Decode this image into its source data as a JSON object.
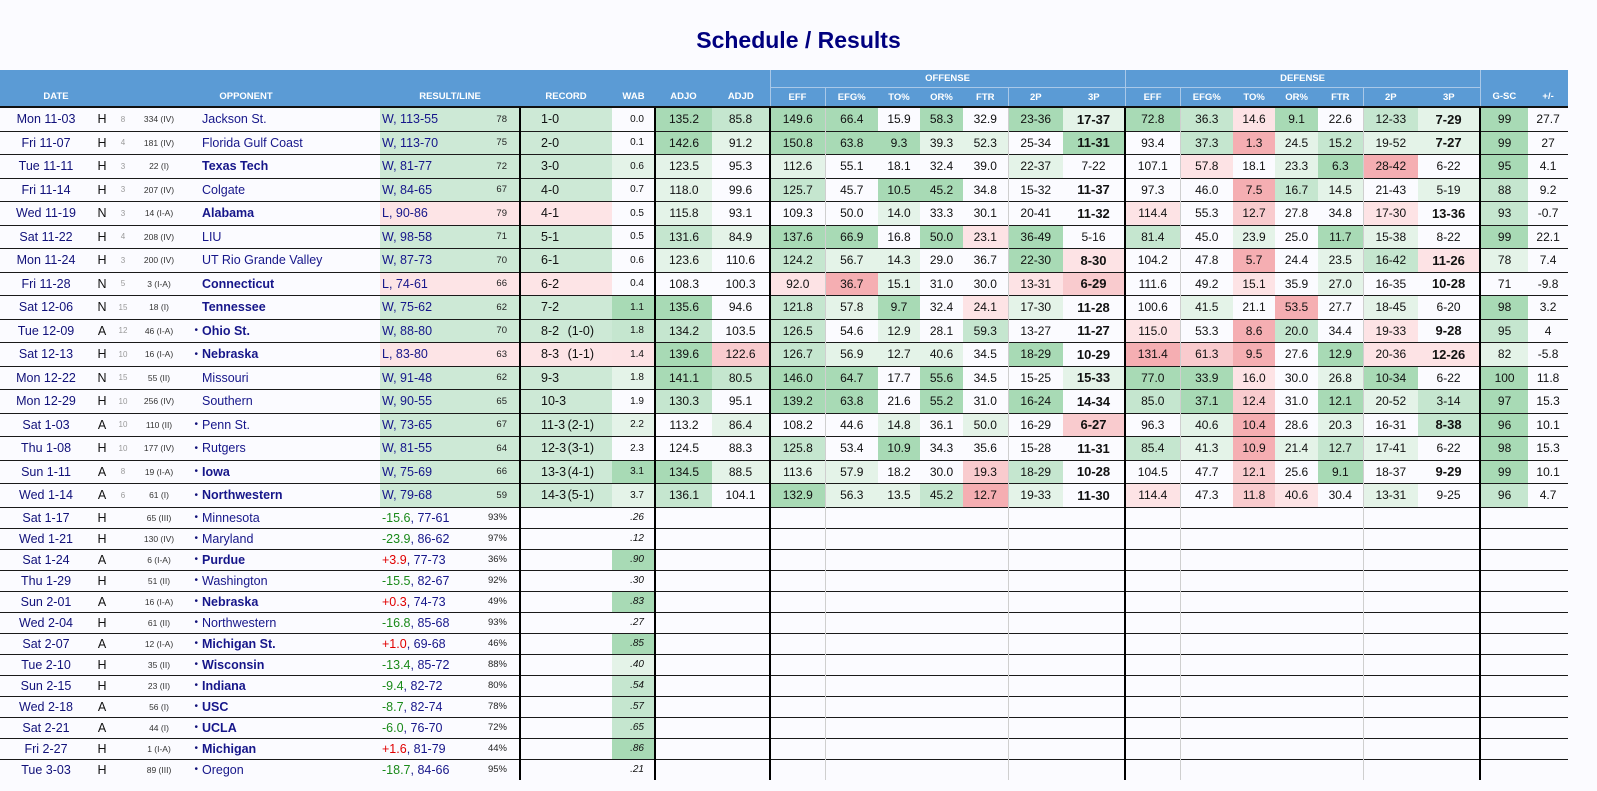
{
  "title": "Schedule / Results",
  "header": {
    "date": "DATE",
    "opponent": "OPPONENT",
    "result": "RESULT/LINE",
    "record": "RECORD",
    "wab": "WAB",
    "adjo": "ADJO",
    "adjd": "ADJD",
    "offense": "OFFENSE",
    "defense": "DEFENSE",
    "stats": [
      "EFF",
      "EFG%",
      "TO%",
      "OR%",
      "FTR",
      "2P",
      "3P"
    ],
    "gsc": "G-SC",
    "pm": "+/-"
  },
  "colors": {
    "header_bg": "#5b9bd5",
    "title": "#00007f",
    "win": "#cde9d6",
    "loss": "#fde4e6",
    "heat_green": [
      "#e4f3e8",
      "#c5e6cf",
      "#a8dab5"
    ],
    "heat_red": [
      "#fde3e5",
      "#f9cbce",
      "#f5aeb2"
    ],
    "favored_spread": "#1a8a1a",
    "underdog_spread": "#e00000"
  },
  "heat_legend": "per row: wab|adjo|adjd|offense x7|defense x7|gsc ; 0 none, 1-3 green, a-c red",
  "past": [
    {
      "date": "Mon 11-03",
      "loc": "H",
      "rk": "8",
      "opp_rank": "334 (IV)",
      "conf": false,
      "opp": "Jackson St.",
      "bold": false,
      "wl": "W",
      "result": "W, 113-55",
      "line": "78",
      "record": "1-0",
      "conf_rec": "",
      "wab": "0.0",
      "adjo": "135.2",
      "adjd": "85.8",
      "off": [
        "149.6",
        "66.4",
        "15.9",
        "58.3",
        "32.9",
        "23-36",
        "17-37"
      ],
      "def": [
        "72.8",
        "36.3",
        "14.6",
        "9.1",
        "22.6",
        "12-33",
        "7-29"
      ],
      "gsc": "99",
      "pm": "27.7",
      "o3b": true,
      "d3b": true,
      "heat": "0|3|2|3303031|32a3021|3"
    },
    {
      "date": "Fri 11-07",
      "loc": "H",
      "rk": "4",
      "opp_rank": "181 (IV)",
      "conf": false,
      "opp": "Florida Gulf Coast",
      "bold": false,
      "wl": "W",
      "result": "W, 113-70",
      "line": "75",
      "record": "2-0",
      "conf_rec": "",
      "wab": "0.1",
      "adjo": "142.6",
      "adjd": "91.2",
      "off": [
        "150.8",
        "63.8",
        "9.3",
        "39.3",
        "52.3",
        "25-34",
        "11-31"
      ],
      "def": [
        "93.4",
        "37.3",
        "1.3",
        "24.5",
        "15.2",
        "19-52",
        "7-27"
      ],
      "gsc": "99",
      "pm": "27",
      "o3b": true,
      "d3b": true,
      "heat": "0|3|1|3331103|02c1211|3"
    },
    {
      "date": "Tue 11-11",
      "loc": "H",
      "rk": "3",
      "opp_rank": "22 (I)",
      "conf": false,
      "opp": "Texas Tech",
      "bold": true,
      "wl": "W",
      "result": "W, 81-77",
      "line": "72",
      "record": "3-0",
      "conf_rec": "",
      "wab": "0.6",
      "adjo": "123.5",
      "adjd": "95.3",
      "off": [
        "112.6",
        "55.1",
        "18.1",
        "32.4",
        "39.0",
        "22-37",
        "7-22"
      ],
      "def": [
        "107.1",
        "57.8",
        "18.1",
        "23.3",
        "6.3",
        "28-42",
        "6-22"
      ],
      "gsc": "95",
      "pm": "4.1",
      "o3b": false,
      "d3b": false,
      "heat": "1|1|0|1000010|0a013c0|3"
    },
    {
      "date": "Fri 11-14",
      "loc": "H",
      "rk": "3",
      "opp_rank": "207 (IV)",
      "conf": false,
      "opp": "Colgate",
      "bold": false,
      "wl": "W",
      "result": "W, 84-65",
      "line": "67",
      "record": "4-0",
      "conf_rec": "",
      "wab": "0.7",
      "adjo": "118.0",
      "adjd": "99.6",
      "off": [
        "125.7",
        "45.7",
        "10.5",
        "45.2",
        "34.8",
        "15-32",
        "11-37"
      ],
      "def": [
        "97.3",
        "46.0",
        "7.5",
        "16.7",
        "14.5",
        "21-43",
        "5-19"
      ],
      "gsc": "88",
      "pm": "9.2",
      "o3b": true,
      "d3b": false,
      "heat": "0|1|0|2033000|00c2101|2"
    },
    {
      "date": "Wed 11-19",
      "loc": "N",
      "rk": "3",
      "opp_rank": "14 (I-A)",
      "conf": false,
      "opp": "Alabama",
      "bold": true,
      "wl": "L",
      "result": "L, 90-86",
      "line": "79",
      "record": "4-1",
      "conf_rec": "",
      "wab": "0.5",
      "adjo": "115.8",
      "adjd": "93.1",
      "off": [
        "109.3",
        "50.0",
        "14.0",
        "33.3",
        "30.1",
        "20-41",
        "11-32"
      ],
      "def": [
        "114.4",
        "55.3",
        "12.7",
        "27.8",
        "34.8",
        "17-30",
        "13-36"
      ],
      "gsc": "93",
      "pm": "-0.7",
      "o3b": true,
      "d3b": true,
      "heat": "0|1|0|0010000|a0b00a0|2"
    },
    {
      "date": "Sat 11-22",
      "loc": "H",
      "rk": "4",
      "opp_rank": "208 (IV)",
      "conf": false,
      "opp": "LIU",
      "bold": false,
      "wl": "W",
      "result": "W, 98-58",
      "line": "71",
      "record": "5-1",
      "conf_rec": "",
      "wab": "0.5",
      "adjo": "131.6",
      "adjd": "84.9",
      "off": [
        "137.6",
        "66.9",
        "16.8",
        "50.0",
        "23.1",
        "36-49",
        "5-16"
      ],
      "def": [
        "81.4",
        "45.0",
        "23.9",
        "25.0",
        "11.7",
        "15-38",
        "8-22"
      ],
      "gsc": "99",
      "pm": "22.1",
      "o3b": false,
      "d3b": false,
      "heat": "0|2|1|3303a30|2010310|3"
    },
    {
      "date": "Mon 11-24",
      "loc": "H",
      "rk": "3",
      "opp_rank": "200 (IV)",
      "conf": false,
      "opp": "UT Rio Grande Valley",
      "bold": false,
      "wl": "W",
      "result": "W, 87-73",
      "line": "70",
      "record": "6-1",
      "conf_rec": "",
      "wab": "0.6",
      "adjo": "123.6",
      "adjd": "110.6",
      "off": [
        "124.2",
        "56.7",
        "14.3",
        "29.0",
        "36.7",
        "22-30",
        "8-30"
      ],
      "def": [
        "104.2",
        "47.8",
        "5.7",
        "24.4",
        "23.5",
        "16-42",
        "11-26"
      ],
      "gsc": "78",
      "pm": "7.4",
      "o3b": true,
      "d3b": true,
      "heat": "0|1|0|211003a|00c012a|1"
    },
    {
      "date": "Fri 11-28",
      "loc": "N",
      "rk": "5",
      "opp_rank": "3 (I-A)",
      "conf": false,
      "opp": "Connecticut",
      "bold": true,
      "wl": "L",
      "result": "L, 74-61",
      "line": "66",
      "record": "6-2",
      "conf_rec": "",
      "wab": "0.4",
      "adjo": "108.3",
      "adjd": "100.3",
      "off": [
        "92.0",
        "36.7",
        "15.1",
        "31.0",
        "30.0",
        "13-31",
        "6-29"
      ],
      "def": [
        "111.6",
        "49.2",
        "15.1",
        "35.9",
        "27.0",
        "16-35",
        "10-28"
      ],
      "gsc": "71",
      "pm": "-9.8",
      "o3b": true,
      "d3b": true,
      "heat": "0|0|0|ac100ab|00a0100|0"
    },
    {
      "date": "Sat 12-06",
      "loc": "N",
      "rk": "15",
      "opp_rank": "18 (I)",
      "conf": false,
      "opp": "Tennessee",
      "bold": true,
      "wl": "W",
      "result": "W, 75-62",
      "line": "62",
      "record": "7-2",
      "conf_rec": "",
      "wab": "1.1",
      "adjo": "135.6",
      "adjd": "94.6",
      "off": [
        "121.8",
        "57.8",
        "9.7",
        "32.4",
        "24.1",
        "17-30",
        "11-28"
      ],
      "def": [
        "100.6",
        "41.5",
        "21.1",
        "53.5",
        "27.7",
        "18-45",
        "6-20"
      ],
      "gsc": "98",
      "pm": "3.2",
      "o3b": true,
      "d3b": false,
      "heat": "3|3|0|2130a10|010c010|3"
    },
    {
      "date": "Tue 12-09",
      "loc": "A",
      "rk": "12",
      "opp_rank": "46 (I-A)",
      "conf": true,
      "opp": "Ohio St.",
      "bold": true,
      "wl": "W",
      "result": "W, 88-80",
      "line": "70",
      "record": "8-2",
      "conf_rec": "(1-0)",
      "wab": "1.8",
      "adjo": "134.2",
      "adjd": "103.5",
      "off": [
        "126.5",
        "54.6",
        "12.9",
        "28.1",
        "59.3",
        "13-27",
        "11-27"
      ],
      "def": [
        "115.0",
        "53.3",
        "8.6",
        "20.0",
        "34.4",
        "19-33",
        "9-28"
      ],
      "gsc": "95",
      "pm": "4",
      "o3b": true,
      "d3b": true,
      "heat": "2|2|0|2010200|a0c20a0|2"
    },
    {
      "date": "Sat 12-13",
      "loc": "H",
      "rk": "10",
      "opp_rank": "16 (I-A)",
      "conf": true,
      "opp": "Nebraska",
      "bold": true,
      "wl": "L",
      "result": "L, 83-80",
      "line": "63",
      "record": "8-3",
      "conf_rec": "(1-1)",
      "wab": "1.4",
      "adjo": "139.6",
      "adjd": "122.6",
      "off": [
        "126.7",
        "56.9",
        "12.7",
        "40.6",
        "34.5",
        "18-29",
        "10-29"
      ],
      "def": [
        "131.4",
        "61.3",
        "9.5",
        "27.6",
        "12.9",
        "20-36",
        "12-26"
      ],
      "gsc": "82",
      "pm": "-5.8",
      "o3b": true,
      "d3b": true,
      "heat": "a|3|b|2111030|cbc03aa|1"
    },
    {
      "date": "Mon 12-22",
      "loc": "N",
      "rk": "15",
      "opp_rank": "55 (II)",
      "conf": false,
      "opp": "Missouri",
      "bold": false,
      "wl": "W",
      "result": "W, 91-48",
      "line": "62",
      "record": "9-3",
      "conf_rec": "",
      "wab": "1.8",
      "adjo": "141.1",
      "adjd": "80.5",
      "off": [
        "146.0",
        "64.7",
        "17.7",
        "55.6",
        "34.5",
        "15-25",
        "15-33"
      ],
      "def": [
        "77.0",
        "33.9",
        "16.0",
        "30.0",
        "26.8",
        "10-34",
        "6-22"
      ],
      "gsc": "100",
      "pm": "11.8",
      "o3b": true,
      "d3b": false,
      "heat": "1|3|2|3303001|33a0130|3"
    },
    {
      "date": "Mon 12-29",
      "loc": "H",
      "rk": "10",
      "opp_rank": "256 (IV)",
      "conf": false,
      "opp": "Southern",
      "bold": false,
      "wl": "W",
      "result": "W, 90-55",
      "line": "65",
      "record": "10-3",
      "conf_rec": "",
      "wab": "1.9",
      "adjo": "130.3",
      "adjd": "95.1",
      "off": [
        "139.2",
        "63.8",
        "21.6",
        "55.2",
        "31.0",
        "16-24",
        "14-34"
      ],
      "def": [
        "85.0",
        "37.1",
        "12.4",
        "31.0",
        "12.1",
        "20-52",
        "3-14"
      ],
      "gsc": "97",
      "pm": "15.3",
      "o3b": true,
      "d3b": false,
      "heat": "0|2|0|3303030|23b0312|3"
    },
    {
      "date": "Sat 1-03",
      "loc": "A",
      "rk": "10",
      "opp_rank": "110 (II)",
      "conf": true,
      "opp": "Penn St.",
      "bold": false,
      "wl": "W",
      "result": "W, 73-65",
      "line": "67",
      "record": "11-3",
      "conf_rec": "(2-1)",
      "wab": "2.2",
      "adjo": "113.2",
      "adjd": "86.4",
      "off": [
        "108.2",
        "44.6",
        "14.8",
        "36.1",
        "50.0",
        "16-29",
        "6-27"
      ],
      "def": [
        "96.3",
        "40.6",
        "10.4",
        "28.6",
        "20.3",
        "16-31",
        "8-38"
      ],
      "gsc": "96",
      "pm": "10.1",
      "o3b": true,
      "d3b": true,
      "heat": "1|0|1|001010b|01c0102|3"
    },
    {
      "date": "Thu 1-08",
      "loc": "H",
      "rk": "10",
      "opp_rank": "177 (IV)",
      "conf": true,
      "opp": "Rutgers",
      "bold": false,
      "wl": "W",
      "result": "W, 81-55",
      "line": "64",
      "record": "12-3",
      "conf_rec": "(3-1)",
      "wab": "2.3",
      "adjo": "124.5",
      "adjd": "88.3",
      "off": [
        "125.8",
        "53.4",
        "10.9",
        "34.3",
        "35.6",
        "15-28",
        "11-31"
      ],
      "def": [
        "85.4",
        "41.3",
        "10.9",
        "21.4",
        "12.7",
        "17-41",
        "6-22"
      ],
      "gsc": "98",
      "pm": "15.3",
      "o3b": true,
      "d3b": false,
      "heat": "0|0|0|2030000|21c1210|3"
    },
    {
      "date": "Sun 1-11",
      "loc": "A",
      "rk": "8",
      "opp_rank": "19 (I-A)",
      "conf": true,
      "opp": "Iowa",
      "bold": true,
      "wl": "W",
      "result": "W, 75-69",
      "line": "66",
      "record": "13-3",
      "conf_rec": "(4-1)",
      "wab": "3.1",
      "adjo": "134.5",
      "adjd": "88.5",
      "off": [
        "113.6",
        "57.9",
        "18.2",
        "30.0",
        "19.3",
        "18-29",
        "10-28"
      ],
      "def": [
        "104.5",
        "47.7",
        "12.1",
        "25.6",
        "9.1",
        "18-37",
        "9-29"
      ],
      "gsc": "99",
      "pm": "10.1",
      "o3b": true,
      "d3b": true,
      "heat": "3|3|1|1100b20|00b0300|3"
    },
    {
      "date": "Wed 1-14",
      "loc": "A",
      "rk": "6",
      "opp_rank": "61 (I)",
      "conf": true,
      "opp": "Northwestern",
      "bold": true,
      "wl": "W",
      "result": "W, 79-68",
      "line": "59",
      "record": "14-3",
      "conf_rec": "(5-1)",
      "wab": "3.7",
      "adjo": "136.1",
      "adjd": "104.1",
      "off": [
        "132.9",
        "56.3",
        "13.5",
        "45.2",
        "12.7",
        "19-33",
        "11-30"
      ],
      "def": [
        "114.4",
        "47.3",
        "11.8",
        "40.6",
        "30.4",
        "13-31",
        "9-25"
      ],
      "gsc": "96",
      "pm": "4.7",
      "o3b": true,
      "d3b": false,
      "heat": "1|2|0|3112c10|a0ba010|2"
    }
  ],
  "future": [
    {
      "date": "Sat 1-17",
      "loc": "H",
      "opp_rank": "65 (III)",
      "opp": "Minnesota",
      "bold": false,
      "spread": "-15.6",
      "score": "77-61",
      "prob": "93%",
      "wab": ".26",
      "heat": "0"
    },
    {
      "date": "Wed 1-21",
      "loc": "H",
      "opp_rank": "130 (IV)",
      "opp": "Maryland",
      "bold": false,
      "spread": "-23.9",
      "score": "86-62",
      "prob": "97%",
      "wab": ".12",
      "heat": "0"
    },
    {
      "date": "Sat 1-24",
      "loc": "A",
      "opp_rank": "6 (I-A)",
      "opp": "Purdue",
      "bold": true,
      "spread": "+3.9",
      "score": "77-73",
      "prob": "36%",
      "wab": ".90",
      "heat": "3"
    },
    {
      "date": "Thu 1-29",
      "loc": "H",
      "opp_rank": "51 (II)",
      "opp": "Washington",
      "bold": false,
      "spread": "-15.5",
      "score": "82-67",
      "prob": "92%",
      "wab": ".30",
      "heat": "0"
    },
    {
      "date": "Sun 2-01",
      "loc": "A",
      "opp_rank": "16 (I-A)",
      "opp": "Nebraska",
      "bold": true,
      "spread": "+0.3",
      "score": "74-73",
      "prob": "49%",
      "wab": ".83",
      "heat": "3"
    },
    {
      "date": "Wed 2-04",
      "loc": "H",
      "opp_rank": "61 (II)",
      "opp": "Northwestern",
      "bold": false,
      "spread": "-16.8",
      "score": "85-68",
      "prob": "93%",
      "wab": ".27",
      "heat": "0"
    },
    {
      "date": "Sat 2-07",
      "loc": "A",
      "opp_rank": "12 (I-A)",
      "opp": "Michigan St.",
      "bold": true,
      "spread": "+1.0",
      "score": "69-68",
      "prob": "46%",
      "wab": ".85",
      "heat": "3"
    },
    {
      "date": "Tue 2-10",
      "loc": "H",
      "opp_rank": "35 (II)",
      "opp": "Wisconsin",
      "bold": true,
      "spread": "-13.4",
      "score": "85-72",
      "prob": "88%",
      "wab": ".40",
      "heat": "1"
    },
    {
      "date": "Sun 2-15",
      "loc": "H",
      "opp_rank": "23 (II)",
      "opp": "Indiana",
      "bold": true,
      "spread": "-9.4",
      "score": "82-72",
      "prob": "80%",
      "wab": ".54",
      "heat": "2"
    },
    {
      "date": "Wed 2-18",
      "loc": "A",
      "opp_rank": "56 (I)",
      "opp": "USC",
      "bold": true,
      "spread": "-8.7",
      "score": "82-74",
      "prob": "78%",
      "wab": ".57",
      "heat": "2"
    },
    {
      "date": "Sat 2-21",
      "loc": "A",
      "opp_rank": "44 (I)",
      "opp": "UCLA",
      "bold": true,
      "spread": "-6.0",
      "score": "76-70",
      "prob": "72%",
      "wab": ".65",
      "heat": "2"
    },
    {
      "date": "Fri 2-27",
      "loc": "H",
      "opp_rank": "1 (I-A)",
      "opp": "Michigan",
      "bold": true,
      "spread": "+1.6",
      "score": "81-79",
      "prob": "44%",
      "wab": ".86",
      "heat": "3"
    },
    {
      "date": "Tue 3-03",
      "loc": "H",
      "opp_rank": "89 (III)",
      "opp": "Oregon",
      "bold": false,
      "spread": "-18.7",
      "score": "84-66",
      "prob": "95%",
      "wab": ".21",
      "heat": "0"
    }
  ],
  "conf_marker": "•"
}
